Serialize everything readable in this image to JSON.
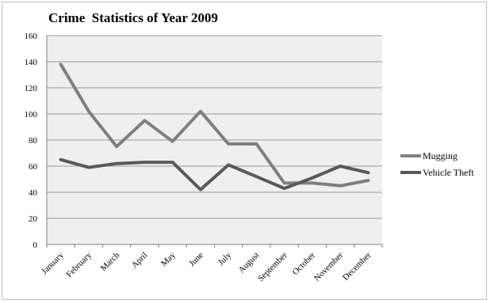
{
  "chart_data": {
    "type": "line",
    "title": "Crime  Statistics of Year 2009",
    "xlabel": "",
    "ylabel": "",
    "ylim": [
      0,
      160
    ],
    "yticks": [
      0,
      20,
      40,
      60,
      80,
      100,
      120,
      140,
      160
    ],
    "grid": true,
    "legend_position": "right",
    "categories": [
      "January",
      "February",
      "March",
      "April",
      "May",
      "June",
      "July",
      "August",
      "September",
      "October",
      "November",
      "December"
    ],
    "series": [
      {
        "name": "Mugging",
        "color": "#7f7f7f",
        "values": [
          138,
          102,
          75,
          95,
          79,
          102,
          77,
          77,
          47,
          47,
          45,
          49
        ]
      },
      {
        "name": "Vehicle Theft",
        "color": "#595959",
        "values": [
          65,
          59,
          62,
          63,
          63,
          42,
          61,
          52,
          43,
          51,
          60,
          55
        ]
      }
    ]
  }
}
